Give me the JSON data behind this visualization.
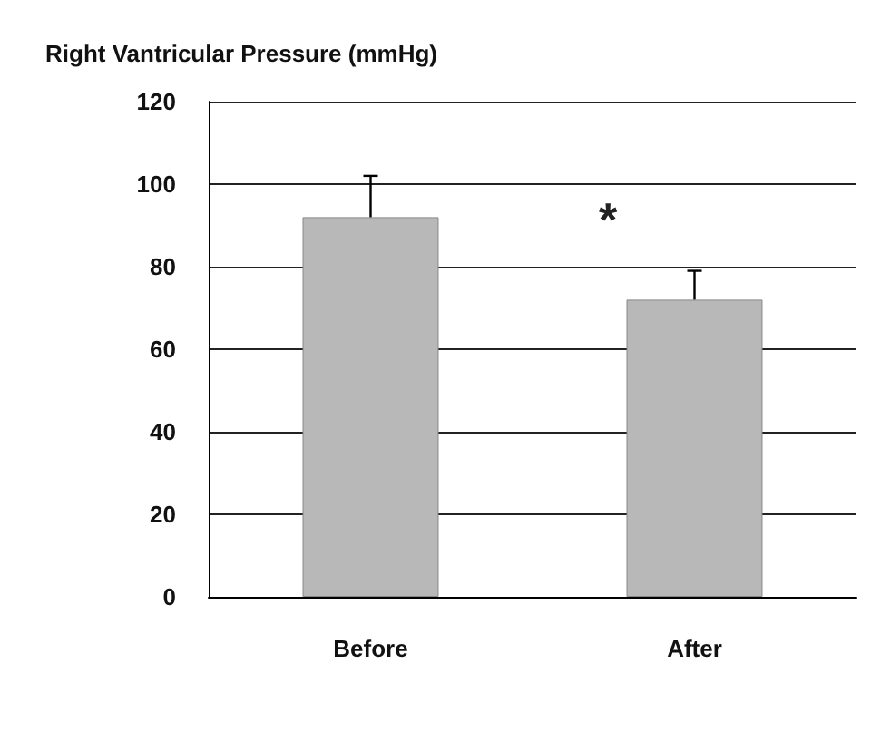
{
  "chart_data": {
    "type": "bar",
    "title": "Right Vantricular Pressure (mmHg)",
    "categories": [
      "Before",
      "After"
    ],
    "values": [
      92,
      72
    ],
    "errors": [
      10,
      7
    ],
    "color": "#b8b8b8",
    "ylim": [
      0,
      120
    ],
    "yticks": [
      0,
      20,
      40,
      60,
      80,
      100,
      120
    ],
    "grid": "y",
    "annotations": [
      "*"
    ]
  }
}
